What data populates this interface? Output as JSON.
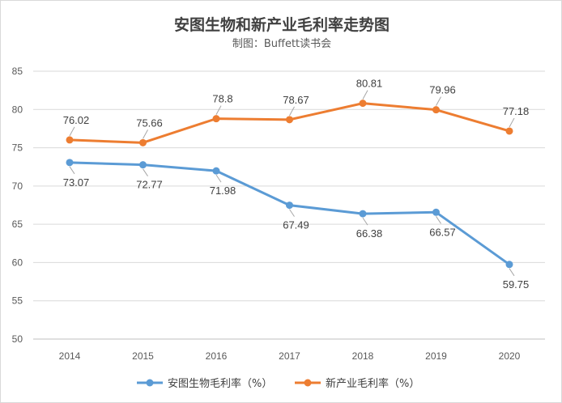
{
  "chart_data": {
    "type": "line",
    "title": "安图生物和新产业毛利率走势图",
    "subtitle": "制图：Buffett读书会",
    "categories": [
      "2014",
      "2015",
      "2016",
      "2017",
      "2018",
      "2019",
      "2020"
    ],
    "series": [
      {
        "name": "安图生物毛利率（%）",
        "color": "#5b9bd5",
        "values": [
          73.07,
          72.77,
          71.98,
          67.49,
          66.38,
          66.57,
          59.75
        ],
        "label_text": [
          "73.07",
          "72.77",
          "71.98",
          "67.49",
          "66.38",
          "66.57",
          "59.75"
        ],
        "label_position": "below"
      },
      {
        "name": "新产业毛利率（%）",
        "color": "#ed7d31",
        "values": [
          76.02,
          75.66,
          78.8,
          78.67,
          80.81,
          79.96,
          77.18
        ],
        "label_text": [
          "76.02",
          "75.66",
          "78.8",
          "78.67",
          "80.81",
          "79.96",
          "77.18"
        ],
        "label_position": "above"
      }
    ],
    "ylim": [
      50,
      85
    ],
    "yticks": [
      "50",
      "55",
      "60",
      "65",
      "70",
      "75",
      "80",
      "85"
    ],
    "grid": true,
    "legend": "bottom"
  }
}
